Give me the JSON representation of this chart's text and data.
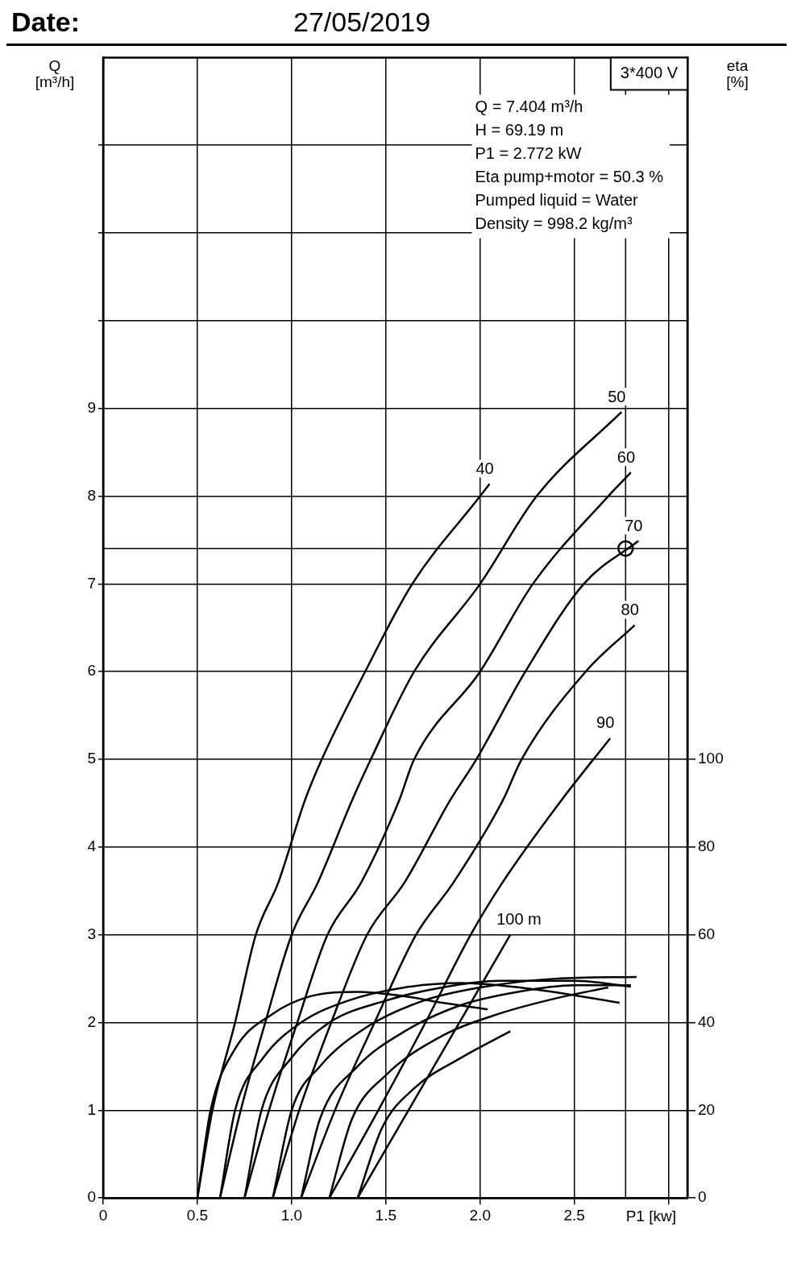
{
  "chart_data": {
    "type": "line",
    "title": "Date:",
    "subtitle": "27/05/2019",
    "xlabel": "P1 [kw]",
    "ylabel": "Q [m³/h]",
    "y2label": "eta [%]",
    "annotations": [
      "3*400 V",
      "Q = 7.404 m³/h",
      "H = 69.19 m",
      "P1 = 2.772 kW",
      "Eta pump+motor = 50.3 %",
      "Pumped liquid = Water",
      "Density = 998.2 kg/m³"
    ],
    "xlim": [
      0,
      3.1
    ],
    "xticks": [
      0,
      0.5,
      {
        "value": 1,
        "label": "1.0"
      },
      1.5,
      {
        "value": 2,
        "label": "2.0"
      },
      2.5,
      {
        "value": 3,
        "label": null
      }
    ],
    "ylim": [
      0,
      13
    ],
    "yticks": [
      0,
      1,
      2,
      3,
      4,
      5,
      6,
      7,
      8,
      9,
      {
        "value": 10,
        "label": null
      },
      {
        "value": 11,
        "label": null
      },
      {
        "value": 12,
        "label": null
      }
    ],
    "y2lim": [
      0,
      260
    ],
    "y2ticks": [
      0,
      20,
      40,
      60,
      80,
      100
    ],
    "grid": true,
    "marker": "none",
    "ref_lines": [
      {
        "axis": "y",
        "value": 7.404,
        "color": "#000000"
      },
      {
        "axis": "x",
        "value": 2.772,
        "color": "#000000"
      }
    ],
    "series": [
      {
        "name": "40",
        "color": "#000000",
        "x": [
          0.5,
          0.58,
          0.7,
          0.81,
          0.93,
          1.07,
          1.16,
          1.39,
          1.64,
          2.0,
          2.05
        ],
        "values": [
          0,
          1,
          2,
          3,
          3.6,
          4.53,
          5,
          6,
          7,
          8,
          8.14
        ]
      },
      {
        "name": "50",
        "color": "#000000",
        "x": [
          0.62,
          0.73,
          0.86,
          1.0,
          1.14,
          1.32,
          1.42,
          1.65,
          2.0,
          2.3,
          2.75
        ],
        "values": [
          0,
          1,
          2,
          3,
          3.6,
          4.53,
          5,
          6,
          7,
          8,
          8.96
        ]
      },
      {
        "name": "60",
        "color": "#000000",
        "x": [
          0.75,
          0.88,
          1.03,
          1.19,
          1.37,
          1.57,
          1.65,
          2.0,
          2.28,
          2.68,
          2.8
        ],
        "values": [
          0,
          1,
          2,
          3,
          3.6,
          4.53,
          5,
          6,
          7,
          8,
          8.27
        ]
      },
      {
        "name": "70",
        "color": "#000000",
        "x": [
          0.9,
          1.04,
          1.21,
          1.4,
          1.6,
          1.84,
          1.98,
          2.24,
          2.55,
          2.84
        ],
        "values": [
          0,
          1,
          2,
          3,
          3.6,
          4.53,
          5,
          6,
          7,
          7.49
        ]
      },
      {
        "name": "80",
        "color": "#000000",
        "x": [
          1.05,
          1.23,
          1.44,
          1.66,
          1.86,
          2.12,
          2.22,
          2.56,
          2.82
        ],
        "values": [
          0,
          1,
          2,
          3,
          3.6,
          4.53,
          5,
          6,
          6.53
        ]
      },
      {
        "name": "90",
        "color": "#000000",
        "x": [
          1.2,
          1.46,
          1.71,
          1.95,
          2.12,
          2.43,
          2.69
        ],
        "values": [
          0,
          1,
          2,
          3,
          3.6,
          4.53,
          5.24
        ]
      },
      {
        "name": "100 m",
        "color": "#000000",
        "x": [
          1.35,
          1.62,
          1.89,
          2.16
        ],
        "values": [
          0,
          1,
          2,
          3
        ]
      },
      {
        "color": "#000000",
        "axis": "y2",
        "x": [
          0.5,
          0.57,
          0.7,
          0.9,
          1.1,
          1.35,
          1.6,
          1.8,
          2.04
        ],
        "values": [
          0,
          20,
          34,
          42,
          46,
          47,
          46,
          44.5,
          43
        ]
      },
      {
        "color": "#000000",
        "axis": "y2",
        "x": [
          0.62,
          0.7,
          0.85,
          1.05,
          1.3,
          1.6,
          1.9,
          2.3,
          2.74
        ],
        "values": [
          0,
          20,
          32,
          40,
          45,
          48,
          49,
          47.5,
          44.5
        ]
      },
      {
        "color": "#000000",
        "axis": "y2",
        "x": [
          0.75,
          0.84,
          1.0,
          1.2,
          1.5,
          1.8,
          2.1,
          2.5,
          2.8
        ],
        "values": [
          0,
          20,
          32,
          40,
          45,
          48,
          49.5,
          49.5,
          48.2
        ]
      },
      {
        "color": "#000000",
        "axis": "y2",
        "x": [
          0.9,
          1.0,
          1.15,
          1.4,
          1.7,
          2.0,
          2.4,
          2.83
        ],
        "values": [
          0,
          20,
          30,
          39,
          45,
          48,
          50,
          50.4
        ]
      },
      {
        "color": "#000000",
        "axis": "y2",
        "x": [
          1.05,
          1.15,
          1.35,
          1.6,
          1.9,
          2.2,
          2.5,
          2.8
        ],
        "values": [
          0,
          18,
          30,
          38,
          44,
          47,
          48.5,
          48.5
        ]
      },
      {
        "color": "#000000",
        "axis": "y2",
        "x": [
          1.2,
          1.32,
          1.5,
          1.8,
          2.1,
          2.4,
          2.68
        ],
        "values": [
          0,
          18,
          28,
          37,
          42,
          45.5,
          48
        ]
      },
      {
        "color": "#000000",
        "axis": "y2",
        "x": [
          1.35,
          1.48,
          1.65,
          1.9,
          2.16
        ],
        "values": [
          0,
          16,
          25,
          32,
          38
        ]
      },
      {
        "type": "scatter",
        "marker": "circle",
        "color": "#000000",
        "x": [
          2.772
        ],
        "values": [
          7.404
        ]
      }
    ]
  }
}
